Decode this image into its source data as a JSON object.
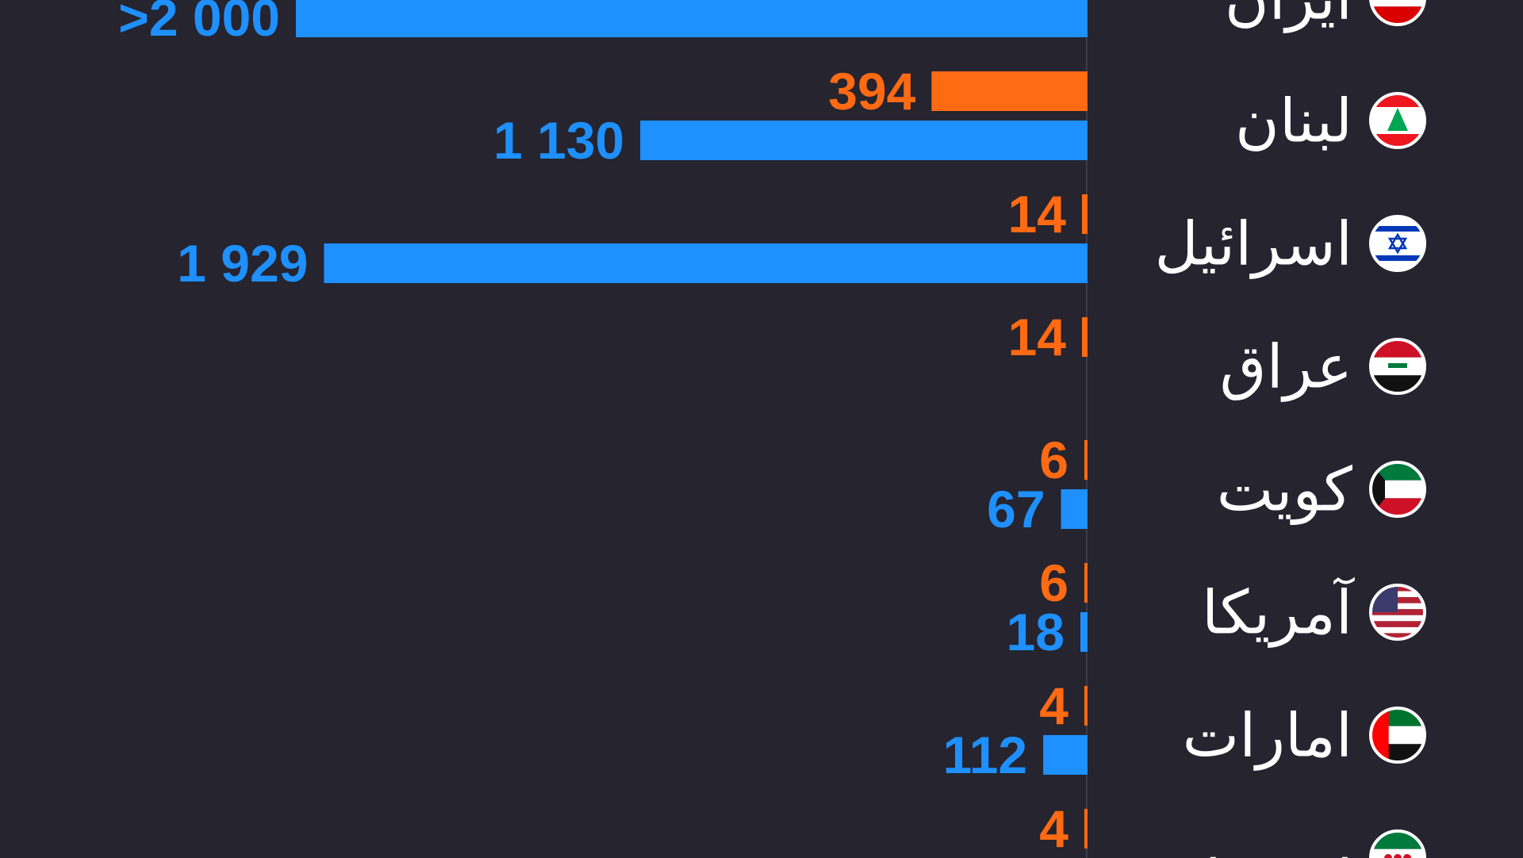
{
  "colors": {
    "background": "#25242f",
    "blue": "#1e90ff",
    "orange": "#ff6a13",
    "label": "#ffffff"
  },
  "chart_data": {
    "type": "bar",
    "orientation": "horizontal",
    "categories": [
      "ایران",
      "لبنان",
      "اسرائیل",
      "عراق",
      "کویت",
      "آمریکا",
      "امارات",
      "سوریه"
    ],
    "flags": [
      "iran-flag",
      "lebanon-flag",
      "israel-flag",
      "iraq-flag",
      "kuwait-flag",
      "usa-flag",
      "uae-flag",
      "syria-flag"
    ],
    "series": [
      {
        "color": "#ff6a13",
        "values": [
          null,
          394,
          14,
          14,
          6,
          6,
          4,
          4
        ],
        "labels": [
          "",
          "394",
          "14",
          "14",
          "6",
          "6",
          "4",
          "4"
        ]
      },
      {
        "color": "#1e90ff",
        "values": [
          2000,
          1130,
          1929,
          null,
          67,
          18,
          112,
          null
        ],
        "labels": [
          ">2 000",
          "1 130",
          "1 929",
          "",
          "67",
          "18",
          "112",
          ""
        ]
      }
    ],
    "xlim": [
      0,
      2000
    ],
    "grid": false,
    "legend": "none"
  }
}
